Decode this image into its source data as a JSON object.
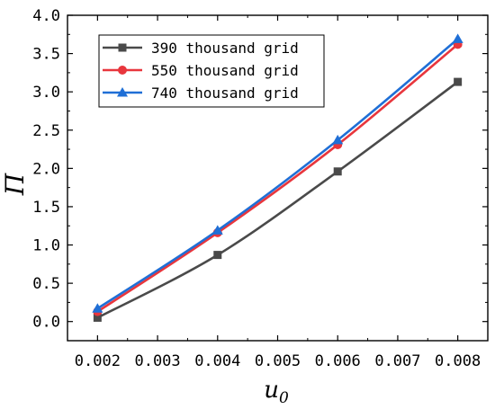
{
  "chart_data": {
    "type": "line",
    "title": "",
    "xlabel": "u",
    "xlabel_subscript": "0",
    "ylabel": "Π",
    "xlim": [
      0.0015,
      0.0085
    ],
    "ylim": [
      -0.25,
      4.0
    ],
    "x_ticks": [
      "0.002",
      "0.003",
      "0.004",
      "0.005",
      "0.006",
      "0.007",
      "0.008"
    ],
    "y_ticks": [
      "0.0",
      "0.5",
      "1.0",
      "1.5",
      "2.0",
      "2.5",
      "3.0",
      "3.5",
      "4.0"
    ],
    "grid": false,
    "legend_position": "top-left",
    "x": [
      0.002,
      0.004,
      0.006,
      0.008
    ],
    "series": [
      {
        "name": "390 thousand grid",
        "values": [
          0.05,
          0.87,
          1.96,
          3.13
        ],
        "color": "#4a4a4a",
        "marker": "square"
      },
      {
        "name": "550 thousand grid",
        "values": [
          0.13,
          1.16,
          2.31,
          3.62
        ],
        "color": "#e8363d",
        "marker": "circle"
      },
      {
        "name": "740 thousand grid",
        "values": [
          0.17,
          1.19,
          2.37,
          3.69
        ],
        "color": "#1f6fd6",
        "marker": "triangle"
      }
    ]
  }
}
